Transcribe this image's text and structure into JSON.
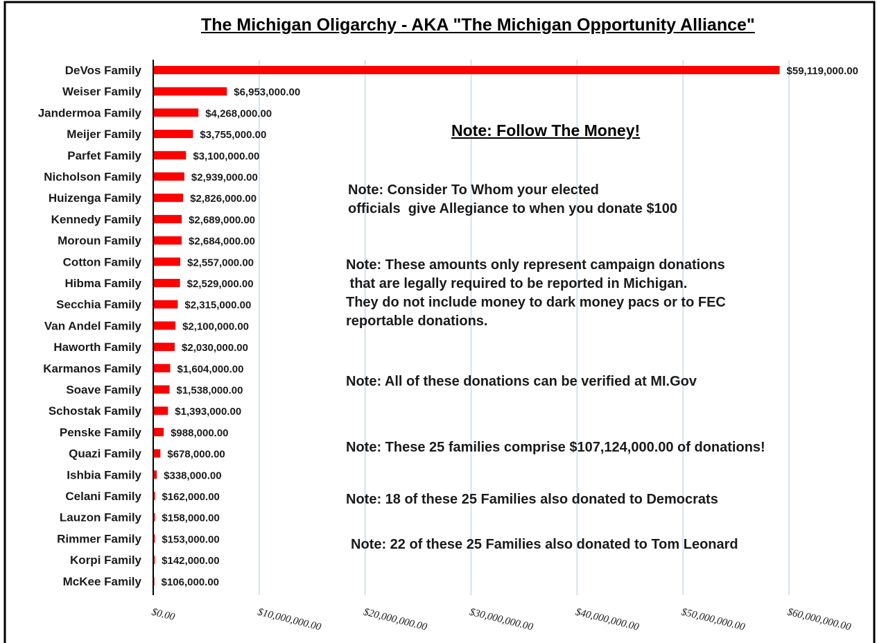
{
  "chart_data": {
    "type": "bar",
    "orientation": "horizontal",
    "title": "The Michigan Oligarchy - AKA \"The Michigan Opportunity Alliance\"",
    "bar_color": "#ff0000",
    "grid": true,
    "xlim": [
      0,
      60000000
    ],
    "x_ticks": [
      0,
      10000000,
      20000000,
      30000000,
      40000000,
      50000000,
      60000000
    ],
    "x_tick_labels": [
      "$0.00",
      "$10,000,000.00",
      "$20,000,000.00",
      "$30,000,000.00",
      "$40,000,000.00",
      "$50,000,000.00",
      "$60,000,000.00"
    ],
    "categories": [
      "DeVos Family",
      "Weiser Family",
      "Jandermoa Family",
      "Meijer Family",
      "Parfet Family",
      "Nicholson Family",
      "Huizenga Family",
      "Kennedy Family",
      "Moroun Family",
      "Cotton Family",
      "Hibma Family",
      "Secchia Family",
      "Van Andel Family",
      "Haworth Family",
      "Karmanos Family",
      "Soave Family",
      "Schostak Family",
      "Penske Family",
      "Quazi Family",
      "Ishbia Family",
      "Celani Family",
      "Lauzon Family",
      "Rimmer Family",
      "Korpi Family",
      "McKee Family"
    ],
    "values": [
      59119000,
      6953000,
      4268000,
      3755000,
      3100000,
      2939000,
      2826000,
      2689000,
      2684000,
      2557000,
      2529000,
      2315000,
      2100000,
      2030000,
      1604000,
      1538000,
      1393000,
      988000,
      678000,
      338000,
      162000,
      158000,
      153000,
      142000,
      106000
    ],
    "value_labels": [
      "$59,119,000.00",
      "$6,953,000.00",
      "$4,268,000.00",
      "$3,755,000.00",
      "$3,100,000.00",
      "$2,939,000.00",
      "$2,826,000.00",
      "$2,689,000.00",
      "$2,684,000.00",
      "$2,557,000.00",
      "$2,529,000.00",
      "$2,315,000.00",
      "$2,100,000.00",
      "$2,030,000.00",
      "$1,604,000.00",
      "$1,538,000.00",
      "$1,393,000.00",
      "$988,000.00",
      "$678,000.00",
      "$338,000.00",
      "$162,000.00",
      "$158,000.00",
      "$153,000.00",
      "$142,000.00",
      "$106,000.00"
    ]
  },
  "notes": {
    "heading": "Note: Follow The Money!",
    "allegiance": "Note: Consider To Whom your elected\nofficials  give Allegiance to when you donate $100",
    "reporting": "Note: These amounts only represent campaign donations\n that are legally required to be reported in Michigan.\nThey do not include money to dark money pacs or to FEC\nreportable donations.",
    "verified": "Note: All of these donations can be verified at MI.Gov",
    "total": "Note: These 25 families comprise $107,124,000.00 of donations!",
    "democrats": "Note: 18 of these 25 Families also donated to Democrats",
    "leonard": "Note: 22 of these 25 Families also donated to Tom Leonard"
  }
}
